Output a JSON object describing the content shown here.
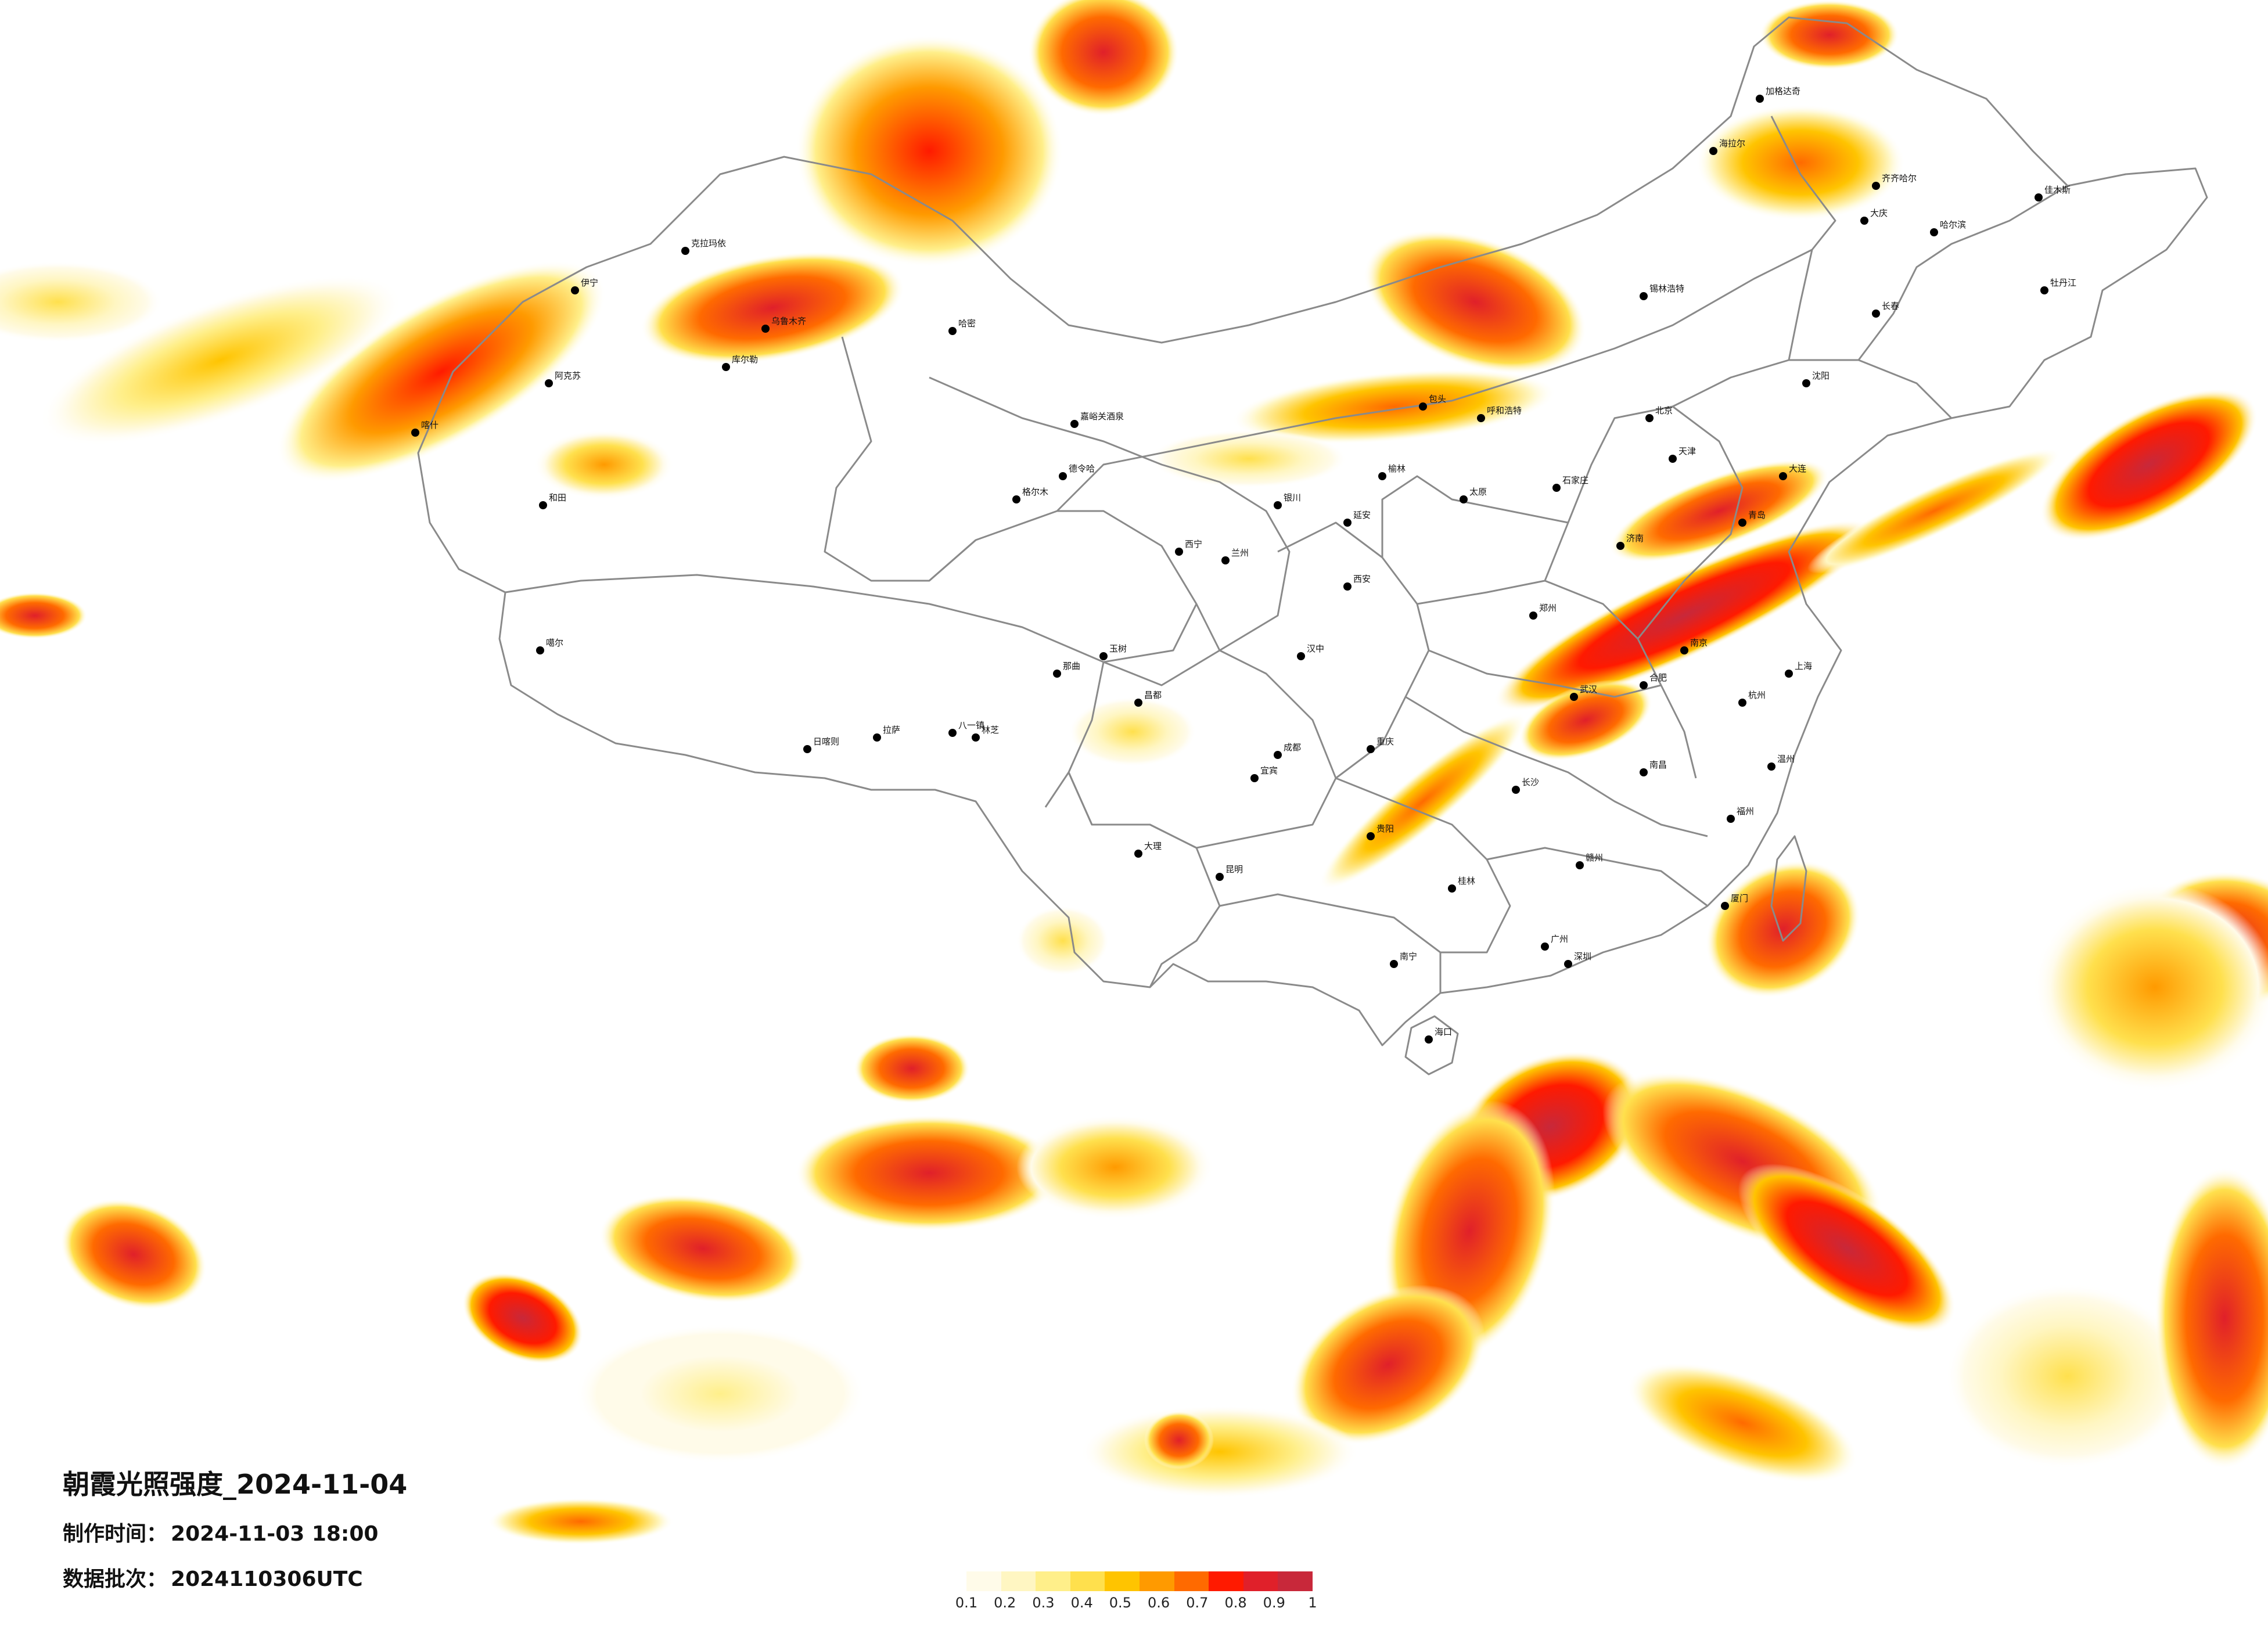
{
  "map": {
    "title": "朝霞光照强度_2024-11-04",
    "made_time_label": "制作时间：",
    "made_time_value": "2024-11-03 18:00",
    "batch_label": "数据批次：",
    "batch_value": "2024110306UTC"
  },
  "legend": {
    "colors": [
      "#fffbe9",
      "#fff6c2",
      "#ffef8a",
      "#ffe04d",
      "#ffc400",
      "#ff9a00",
      "#ff6a00",
      "#ff1a00",
      "#e0202a",
      "#c8283a"
    ],
    "ticks": [
      "0.1",
      "0.2",
      "0.3",
      "0.4",
      "0.5",
      "0.6",
      "0.7",
      "0.8",
      "0.9",
      "1"
    ]
  },
  "cities": [
    {
      "name": "喀什"
    },
    {
      "name": "和田"
    },
    {
      "name": "阿克苏"
    },
    {
      "name": "库尔勒"
    },
    {
      "name": "乌鲁木齐"
    },
    {
      "name": "克拉玛依"
    },
    {
      "name": "伊宁"
    },
    {
      "name": "哈密"
    },
    {
      "name": "嘉峪关酒泉"
    },
    {
      "name": "格尔木"
    },
    {
      "name": "德令哈"
    },
    {
      "name": "西宁"
    },
    {
      "name": "兰州"
    },
    {
      "name": "银川"
    },
    {
      "name": "拉萨"
    },
    {
      "name": "日喀则"
    },
    {
      "name": "那曲"
    },
    {
      "name": "昌都"
    },
    {
      "name": "林芝"
    },
    {
      "name": "八一镇"
    },
    {
      "name": "噶尔"
    },
    {
      "name": "玉树"
    },
    {
      "name": "成都"
    },
    {
      "name": "重庆"
    },
    {
      "name": "贵阳"
    },
    {
      "name": "昆明"
    },
    {
      "name": "大理"
    },
    {
      "name": "南宁"
    },
    {
      "name": "广州"
    },
    {
      "name": "深圳"
    },
    {
      "name": "海口"
    },
    {
      "name": "长沙"
    },
    {
      "name": "武汉"
    },
    {
      "name": "南昌"
    },
    {
      "name": "福州"
    },
    {
      "name": "杭州"
    },
    {
      "name": "上海"
    },
    {
      "name": "南京"
    },
    {
      "name": "合肥"
    },
    {
      "name": "郑州"
    },
    {
      "name": "济南"
    },
    {
      "name": "石家庄"
    },
    {
      "name": "太原"
    },
    {
      "name": "北京"
    },
    {
      "name": "天津"
    },
    {
      "name": "呼和浩特"
    },
    {
      "name": "包头"
    },
    {
      "name": "沈阳"
    },
    {
      "name": "长春"
    },
    {
      "name": "哈尔滨"
    },
    {
      "name": "齐齐哈尔"
    },
    {
      "name": "大庆"
    },
    {
      "name": "佳木斯"
    },
    {
      "name": "牡丹江"
    },
    {
      "name": "加格达奇"
    },
    {
      "name": "海拉尔"
    },
    {
      "name": "锡林浩特"
    },
    {
      "name": "大连"
    },
    {
      "name": "青岛"
    },
    {
      "name": "西安"
    },
    {
      "name": "延安"
    },
    {
      "name": "榆林"
    },
    {
      "name": "汉中"
    },
    {
      "name": "宜宾"
    },
    {
      "name": "桂林"
    },
    {
      "name": "赣州"
    },
    {
      "name": "温州"
    },
    {
      "name": "厦门"
    }
  ]
}
